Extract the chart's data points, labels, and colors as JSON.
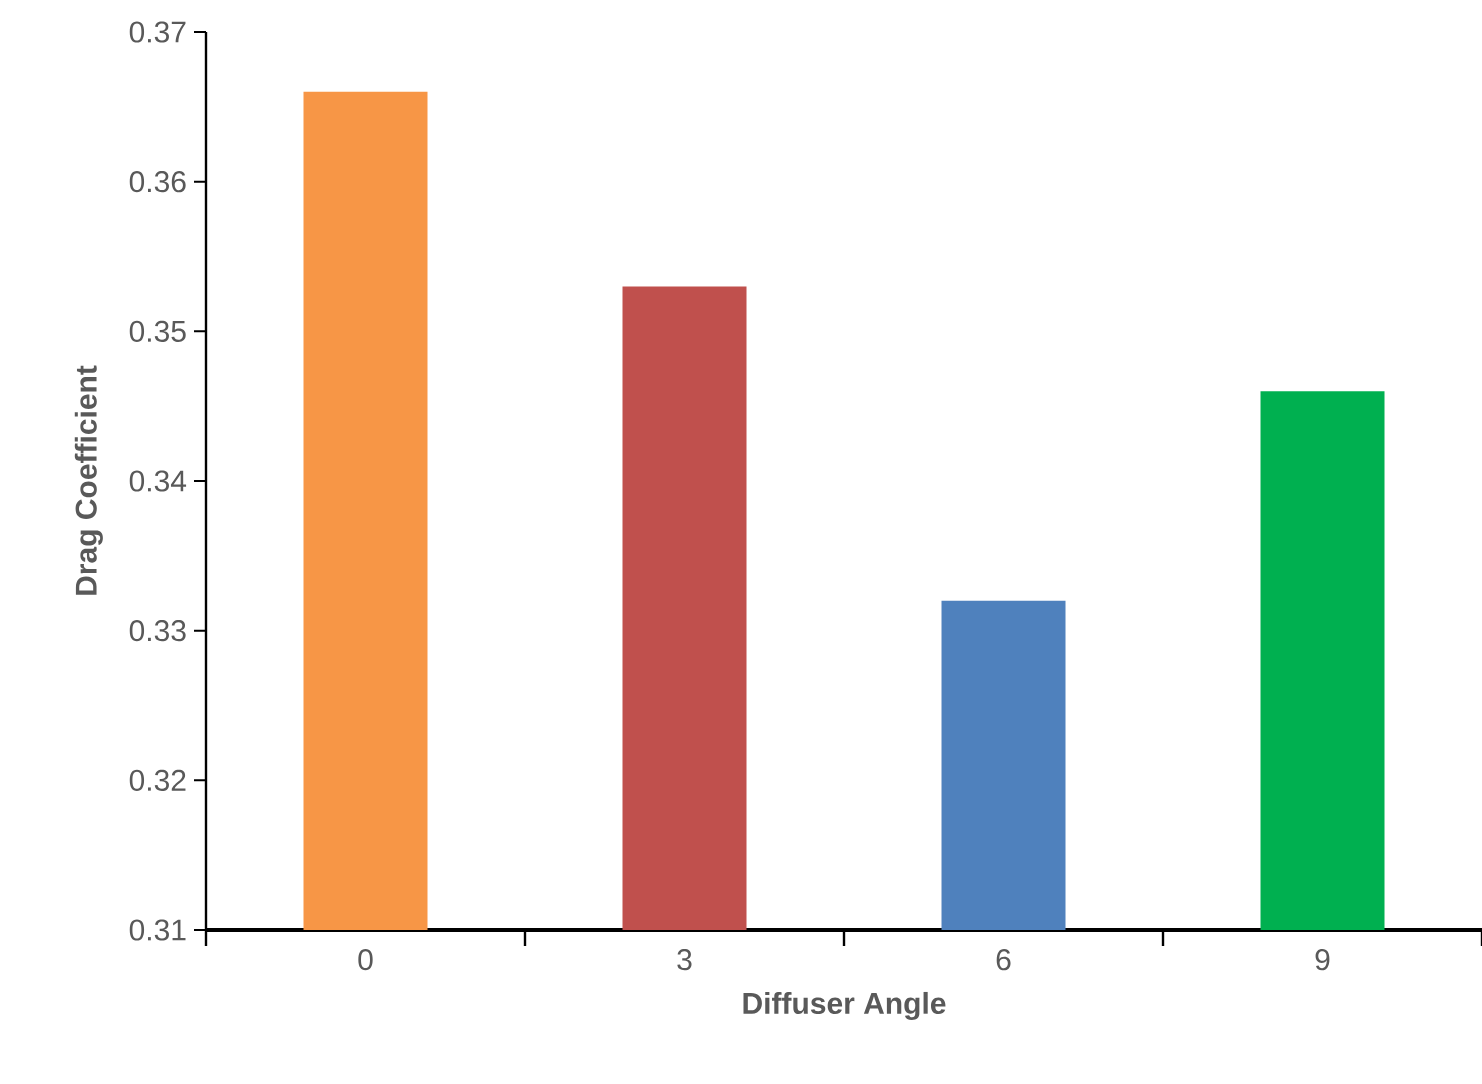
{
  "chart_data": {
    "type": "bar",
    "categories": [
      "0",
      "3",
      "6",
      "9"
    ],
    "values": [
      0.366,
      0.353,
      0.332,
      0.346
    ],
    "colors": [
      "#f79646",
      "#c0504d",
      "#4f81bd",
      "#00b050"
    ],
    "xlabel": "Diffuser Angle",
    "ylabel": "Drag Coefficient",
    "ylim": [
      0.31,
      0.37
    ],
    "yticks": [
      0.31,
      0.32,
      0.33,
      0.34,
      0.35,
      0.36,
      0.37
    ],
    "grid": false
  }
}
